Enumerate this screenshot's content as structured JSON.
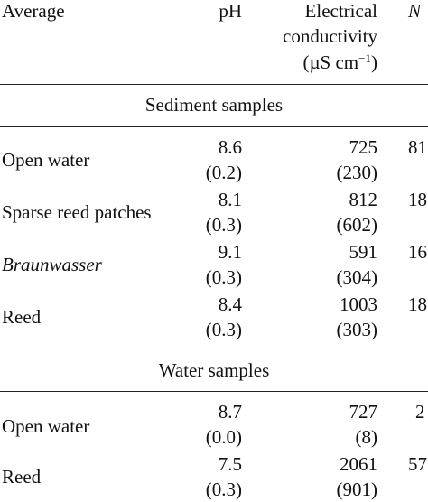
{
  "header": {
    "average": "Average",
    "ph": "pH",
    "ec_line1": "Electrical",
    "ec_line2": "conductivity",
    "ec_unit_pre": "(µS cm",
    "ec_unit_sup": "−1",
    "ec_unit_post": ")",
    "n": "N"
  },
  "sections": [
    {
      "title": "Sediment samples",
      "rows": [
        {
          "label": "Open water",
          "ph": "8.6",
          "ph_sd": "(0.2)",
          "ec": "725",
          "ec_sd": "(230)",
          "n": "81"
        },
        {
          "label": "Sparse reed patches",
          "ph": "8.1",
          "ph_sd": "(0.3)",
          "ec": "812",
          "ec_sd": "(602)",
          "n": "18"
        },
        {
          "label": "Braunwasser",
          "ph": "9.1",
          "ph_sd": "(0.3)",
          "ec": "591",
          "ec_sd": "(304)",
          "n": "16"
        },
        {
          "label": "Reed",
          "ph": "8.4",
          "ph_sd": "(0.3)",
          "ec": "1003",
          "ec_sd": "(303)",
          "n": "18"
        }
      ]
    },
    {
      "title": "Water samples",
      "rows": [
        {
          "label": "Open water",
          "ph": "8.7",
          "ph_sd": "(0.0)",
          "ec": "727",
          "ec_sd": "(8)",
          "n": "2"
        },
        {
          "label": "Reed",
          "ph": "7.5",
          "ph_sd": "(0.3)",
          "ec": "2061",
          "ec_sd": "(901)",
          "n": "57"
        }
      ]
    }
  ]
}
